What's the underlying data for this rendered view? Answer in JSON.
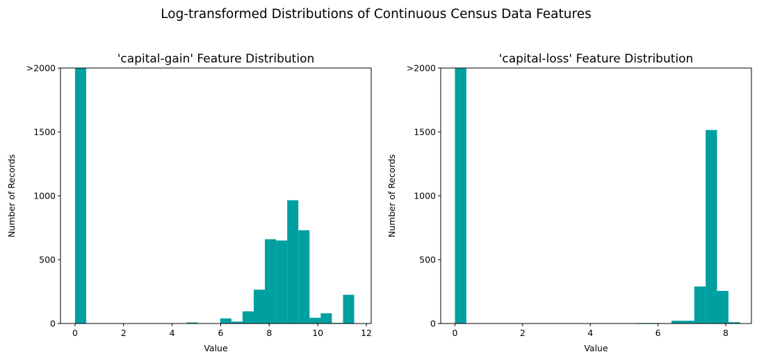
{
  "suptitle": "Log-transformed Distributions of Continuous Census Data Features",
  "bar_color": "#00A0A0",
  "chart_data": [
    {
      "type": "bar",
      "title": "'capital-gain' Feature Distribution",
      "xlabel": "Value",
      "ylabel": "Number of Records",
      "xlim": [
        -0.6,
        12.2
      ],
      "ylim": [
        0,
        2000
      ],
      "xticks": [
        0,
        2,
        4,
        6,
        8,
        10,
        12
      ],
      "yticks": [
        0,
        500,
        1000,
        1500,
        2000
      ],
      "ytick_labels": [
        "0",
        "500",
        "1000",
        "1500",
        ">2000"
      ],
      "bin_width": 0.46,
      "bars": [
        {
          "x": 0.0,
          "value": 2000
        },
        {
          "x": 0.46,
          "value": 0
        },
        {
          "x": 0.92,
          "value": 0
        },
        {
          "x": 1.38,
          "value": 0
        },
        {
          "x": 1.84,
          "value": 0
        },
        {
          "x": 2.3,
          "value": 0
        },
        {
          "x": 2.76,
          "value": 0
        },
        {
          "x": 3.22,
          "value": 0
        },
        {
          "x": 3.68,
          "value": 0
        },
        {
          "x": 4.14,
          "value": 0
        },
        {
          "x": 4.6,
          "value": 8
        },
        {
          "x": 5.06,
          "value": 0
        },
        {
          "x": 5.52,
          "value": 0
        },
        {
          "x": 5.98,
          "value": 40
        },
        {
          "x": 6.44,
          "value": 15
        },
        {
          "x": 6.9,
          "value": 95
        },
        {
          "x": 7.36,
          "value": 265
        },
        {
          "x": 7.82,
          "value": 660
        },
        {
          "x": 8.28,
          "value": 650
        },
        {
          "x": 8.74,
          "value": 965
        },
        {
          "x": 9.2,
          "value": 730
        },
        {
          "x": 9.66,
          "value": 45
        },
        {
          "x": 10.12,
          "value": 80
        },
        {
          "x": 10.58,
          "value": 5
        },
        {
          "x": 11.04,
          "value": 225
        }
      ]
    },
    {
      "type": "bar",
      "title": "'capital-loss' Feature Distribution",
      "xlabel": "Value",
      "ylabel": "Number of Records",
      "xlim": [
        -0.42,
        8.76
      ],
      "ylim": [
        0,
        2000
      ],
      "xticks": [
        0,
        2,
        4,
        6,
        8
      ],
      "yticks": [
        0,
        500,
        1000,
        1500,
        2000
      ],
      "ytick_labels": [
        "0",
        "500",
        "1000",
        "1500",
        ">2000"
      ],
      "bin_width": 0.3367,
      "bars": [
        {
          "x": 0.0,
          "value": 2000
        },
        {
          "x": 0.3367,
          "value": 0
        },
        {
          "x": 0.6734,
          "value": 0
        },
        {
          "x": 1.0101,
          "value": 0
        },
        {
          "x": 1.3468,
          "value": 0
        },
        {
          "x": 1.6835,
          "value": 0
        },
        {
          "x": 2.0202,
          "value": 0
        },
        {
          "x": 2.3569,
          "value": 0
        },
        {
          "x": 2.6936,
          "value": 0
        },
        {
          "x": 3.0303,
          "value": 0
        },
        {
          "x": 3.367,
          "value": 0
        },
        {
          "x": 3.7037,
          "value": 0
        },
        {
          "x": 4.0404,
          "value": 0
        },
        {
          "x": 4.3771,
          "value": 0
        },
        {
          "x": 4.7138,
          "value": 0
        },
        {
          "x": 5.0505,
          "value": 0
        },
        {
          "x": 5.3872,
          "value": 4
        },
        {
          "x": 5.7239,
          "value": 4
        },
        {
          "x": 6.0606,
          "value": 0
        },
        {
          "x": 6.3973,
          "value": 22
        },
        {
          "x": 6.734,
          "value": 22
        },
        {
          "x": 7.0707,
          "value": 290
        },
        {
          "x": 7.4074,
          "value": 1515
        },
        {
          "x": 7.7441,
          "value": 255
        },
        {
          "x": 8.0808,
          "value": 10
        }
      ]
    }
  ]
}
